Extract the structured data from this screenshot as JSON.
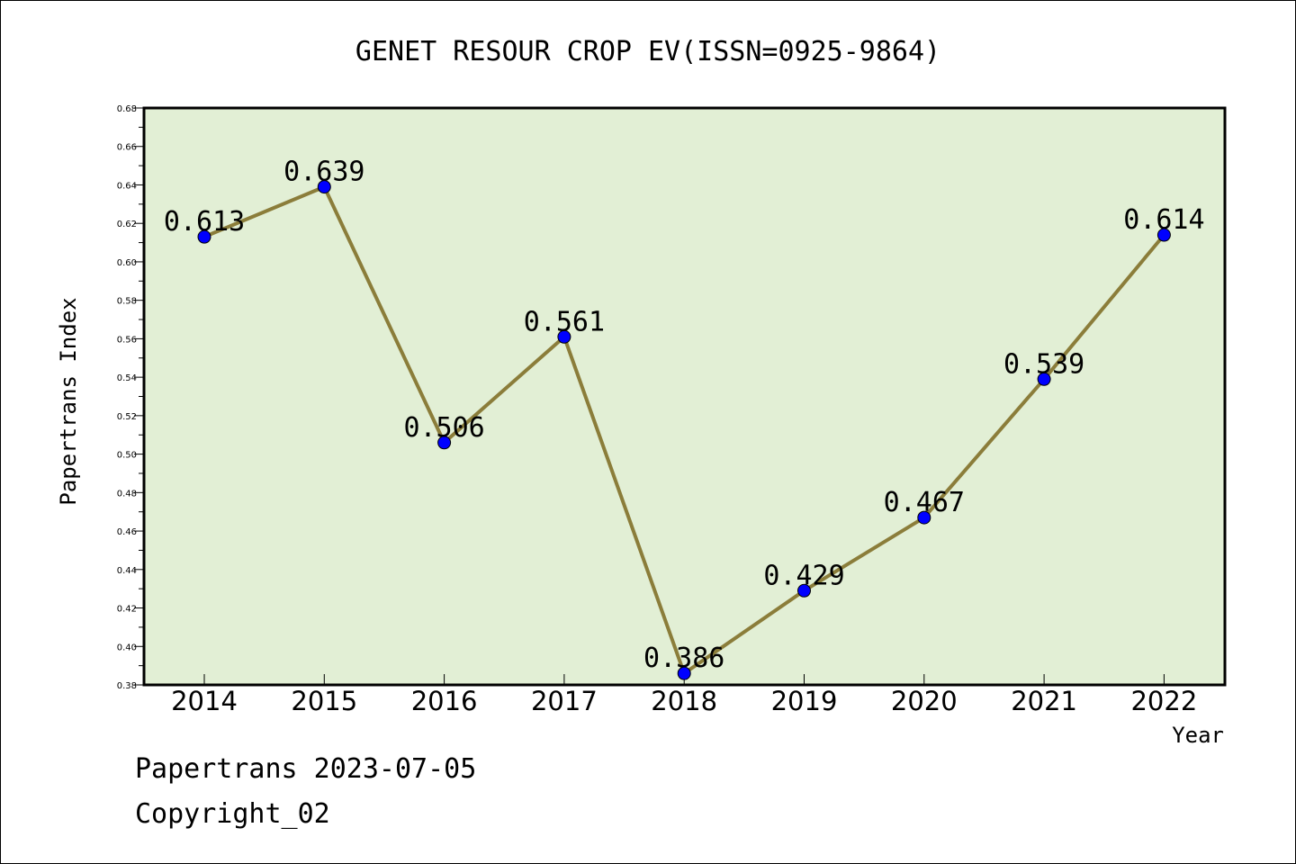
{
  "chart_data": {
    "type": "line",
    "title": "GENET RESOUR CROP EV(ISSN=0925-9864)",
    "xlabel": "Year",
    "ylabel": "Papertrans Index",
    "ylim": [
      0.38,
      0.68
    ],
    "yticks": [
      "0.38",
      "0.40",
      "0.42",
      "0.44",
      "0.46",
      "0.48",
      "0.50",
      "0.52",
      "0.54",
      "0.56",
      "0.58",
      "0.60",
      "0.62",
      "0.64",
      "0.66",
      "0.68"
    ],
    "categories": [
      "2014",
      "2015",
      "2016",
      "2017",
      "2018",
      "2019",
      "2020",
      "2021",
      "2022"
    ],
    "values": [
      0.613,
      0.639,
      0.506,
      0.561,
      0.386,
      0.429,
      0.467,
      0.539,
      0.614
    ],
    "data_labels": [
      "0.613",
      "0.639",
      "0.506",
      "0.561",
      "0.386",
      "0.429",
      "0.467",
      "0.539",
      "0.614"
    ],
    "grid": false,
    "legend": "none",
    "colors": {
      "plot_background": "#e2efd5",
      "line": "#8b7d3a",
      "marker": "#0000ff"
    }
  },
  "footer": {
    "line1": "Papertrans 2023-07-05",
    "line2": "Copyright_02"
  }
}
